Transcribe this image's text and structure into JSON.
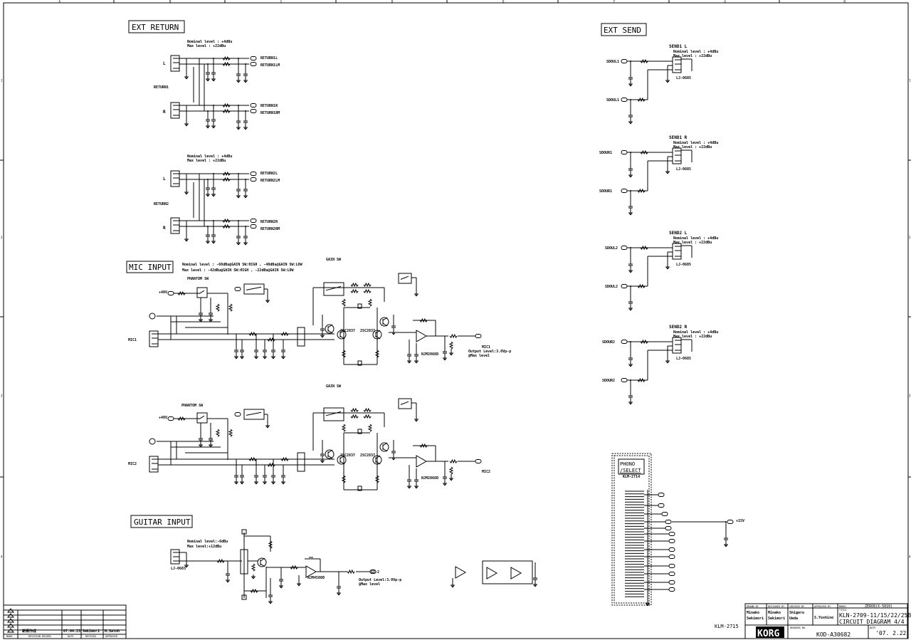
{
  "sheet": {
    "columns": [
      "A",
      "B",
      "C",
      "D",
      "E",
      "F",
      "G",
      "H"
    ],
    "rows": [
      "1",
      "2",
      "3",
      "4"
    ],
    "board_label": "KLM-2715"
  },
  "ext_return": {
    "title": "EXT RETURN",
    "blocks": [
      {
        "name": "RETURN1",
        "nominal": "Nominal level : +4dBu",
        "max": "Max level : +22dBu",
        "left": "L",
        "right": "R",
        "outputs": [
          "RETURN1L",
          "RETURN1LM",
          "RETURN1R",
          "RETURN1RM"
        ]
      },
      {
        "name": "RETURN2",
        "nominal": "Nominal level : +4dBu",
        "max": "Max level : +22dBu",
        "left": "L",
        "right": "R",
        "outputs": [
          "RETURN2L",
          "RETURN2LM",
          "RETURN2R",
          "RETURN2RM"
        ]
      }
    ]
  },
  "ext_send": {
    "title": "EXT SEND",
    "blocks": [
      {
        "name": "SEND1 L",
        "nominal": "Nominal level : +4dBu",
        "max": "Max level : +22dBu",
        "inputs": [
          "SDOUL1",
          "SDOUL1"
        ],
        "jack": "LJ-0685"
      },
      {
        "name": "SEND1 R",
        "nominal": "Nominal level : +4dBu",
        "max": "Max level : +22dBu",
        "inputs": [
          "SDOUR1",
          "SDOUR1"
        ],
        "jack": "LJ-0685"
      },
      {
        "name": "SEND2 L",
        "nominal": "Nominal level : +4dBu",
        "max": "Max level : +22dBu",
        "inputs": [
          "SDOUL2",
          "SDOUL2"
        ],
        "jack": "LJ-0685"
      },
      {
        "name": "SEND2 R",
        "nominal": "Nominal level : +4dBu",
        "max": "Max level : +22dBu",
        "inputs": [
          "SDOUR2",
          "SDOUR2"
        ],
        "jack": "LJ-0685"
      }
    ]
  },
  "mic_input": {
    "title": "MIC INPUT",
    "nominal": "Nominal level : -60dBu@GAIN SW:HIGH , -40dBu@GAIN SW:LOW",
    "max": "Max level : -42dBu@GAIN SW:HIGH , -22dBu@GAIN SW:LOW",
    "channels": [
      {
        "name": "MIC1",
        "phantom": "PHANTOM SW",
        "gain": "GAIN SW",
        "output_label": "MIC1",
        "output_level": "Output Level:3.0Vp-p",
        "output_note": "@Max level",
        "supply": "+48V",
        "opamp": "NJM2068D",
        "transistors": [
          "2SC2837",
          "2SC2837"
        ]
      },
      {
        "name": "MIC2",
        "phantom": "PHANTOM SW",
        "gain": "GAIN SW",
        "output_label": "MIC2",
        "supply": "+48V",
        "opamp": "NJM2068D",
        "transistors": [
          "2SC2837",
          "2SC2837"
        ]
      }
    ]
  },
  "guitar_input": {
    "title": "GUITAR INPUT",
    "nominal": "Nominal level:-6dBu",
    "max": "Max level:+12dBu",
    "output_label": "GI-2",
    "output_level": "Output Level:3.0Vp-p",
    "output_note": "@Max level",
    "opamp": "NJM4580D",
    "jack": "LJ-0683"
  },
  "phono_select": {
    "title_line1": "PHONO",
    "title_line2": "/SELECT",
    "board": "KLM-2714",
    "supply": "+15V"
  },
  "title_block": {
    "headers": [
      "DRAWN BY",
      "DESIGNED BY",
      "CHECKED BY",
      "APPROVED BY"
    ],
    "drawn_by": [
      "Minako",
      "Sekimori"
    ],
    "designed_by": [
      "Minako",
      "Sekimori"
    ],
    "checked_by": [
      "Shigeru",
      "Ueda"
    ],
    "approved_by": "S.Yoshino",
    "model_label": "MODEL",
    "model": "ZERO8(X-5810)",
    "title_label": "TITLE",
    "title_line1": "KLN-2709-11/15/22/25B",
    "title_line2": "CIRCUIT DIAGRAM 4/4",
    "drawing_no_label": "DRAWING NO.",
    "drawing_no": "KOD-A30682",
    "date_label": "DATE",
    "date": "'07. 2.22",
    "logo": "KORG"
  },
  "revision_block": {
    "row": {
      "mark": "1",
      "revision": "新規作成",
      "date": "07.04.23",
      "revised": "Sekimori",
      "approved": "N.Satoh"
    },
    "headers": [
      "MARK",
      "REVISION RECORD",
      "DATE",
      "REVISED",
      "APPROVED"
    ]
  }
}
